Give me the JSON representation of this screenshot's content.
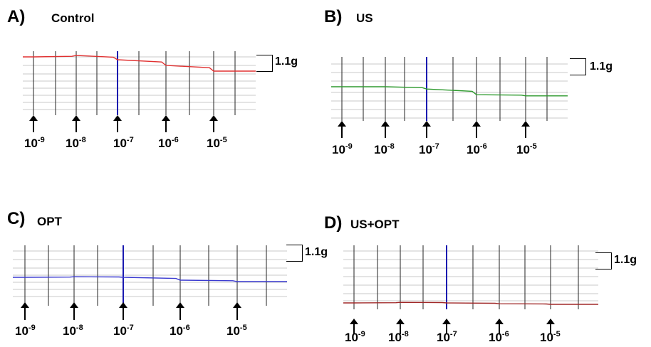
{
  "chart_data": [
    {
      "type": "line",
      "panel_label": "A)",
      "title": "Control",
      "line_color": "#e03030",
      "scale_bar_label": "1.1g",
      "x": [
        "10-9",
        "10-8",
        "10-7",
        "10-6",
        "10-5"
      ],
      "series": [
        {
          "values": [
            0,
            0.05,
            -0.1,
            -0.3,
            -0.5
          ]
        }
      ],
      "ylim": [
        -1.1,
        0.3
      ],
      "grid": true
    },
    {
      "type": "line",
      "panel_label": "B)",
      "title": "US",
      "line_color": "#2e9a2e",
      "scale_bar_label": "1.1g",
      "x": [
        "10-9",
        "10-8",
        "10-7",
        "10-6",
        "10-5"
      ],
      "series": [
        {
          "values": [
            0,
            0,
            -0.08,
            -0.28,
            -0.32
          ]
        }
      ],
      "ylim": [
        -1.1,
        0.3
      ],
      "grid": true
    },
    {
      "type": "line",
      "panel_label": "C)",
      "title": "OPT",
      "line_color": "#3a3ad0",
      "scale_bar_label": "1.1g",
      "x": [
        "10-9",
        "10-8",
        "10-7",
        "10-6",
        "10-5"
      ],
      "series": [
        {
          "values": [
            0,
            0.02,
            0,
            -0.1,
            -0.15
          ]
        }
      ],
      "ylim": [
        -1.1,
        0.3
      ],
      "grid": true
    },
    {
      "type": "line",
      "panel_label": "D)",
      "title": "US+OPT",
      "line_color": "#a02828",
      "scale_bar_label": "1.1g",
      "x": [
        "10-9",
        "10-8",
        "10-7",
        "10-6",
        "10-5"
      ],
      "series": [
        {
          "values": [
            0,
            0.02,
            0,
            -0.03,
            -0.05
          ]
        }
      ],
      "ylim": [
        -1.1,
        0.3
      ],
      "grid": true
    }
  ],
  "labels": {
    "conc_base": "10",
    "exponents": [
      "-9",
      "-8",
      "-7",
      "-6",
      "-5"
    ]
  }
}
